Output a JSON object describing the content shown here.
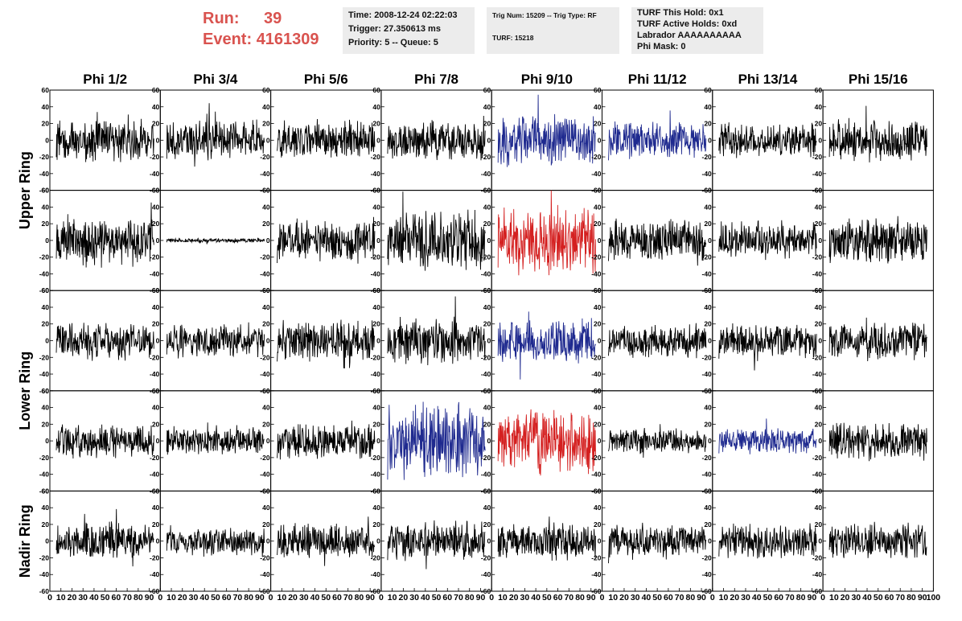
{
  "header": {
    "run_label": "Run:",
    "run_value": "39",
    "event_label": "Event:",
    "event_value": "4161309",
    "colors": {
      "run_text": "#d9534f"
    }
  },
  "info_boxes": {
    "time": {
      "line1": "Time: 2008-12-24 02:22:03",
      "line2": "Trigger: 27.350613 ms",
      "line3": "Priority: 5 -- Queue: 5"
    },
    "trig": {
      "line1": "Trig Num: 15209 -- Trig Type: RF",
      "line2": "TURF: 15218"
    },
    "turf": {
      "line1": "TURF This Hold: 0x1",
      "line2": "TURF Active Holds: 0xd",
      "line3": "Labrador AAAAAAAAAA",
      "line4": "Phi Mask: 0"
    }
  },
  "chart_data": {
    "type": "line",
    "columns": [
      "Phi 1/2",
      "Phi 3/4",
      "Phi 5/6",
      "Phi 7/8",
      "Phi 9/10",
      "Phi 11/12",
      "Phi 13/14",
      "Phi 15/16"
    ],
    "row_groups": [
      {
        "label": "Upper Ring",
        "rows": [
          0,
          1
        ]
      },
      {
        "label": "Lower Ring",
        "rows": [
          2,
          3
        ]
      },
      {
        "label": "Nadir Ring",
        "rows": [
          4
        ]
      }
    ],
    "ylim": [
      -60,
      60
    ],
    "y_ticks": [
      -60,
      -40,
      -20,
      0,
      20,
      40,
      60
    ],
    "xlim": [
      0,
      100
    ],
    "x_tick_labels": [
      "0",
      "10",
      "20",
      "30",
      "40",
      "50",
      "60",
      "70",
      "80",
      "90",
      "100"
    ],
    "colors": {
      "normal": "#000000",
      "highlight_blue": "#1f2a8f",
      "highlight_red": "#d42020"
    },
    "cells": [
      {
        "row": 0,
        "col": 0,
        "color": "normal",
        "amplitude": 20
      },
      {
        "row": 0,
        "col": 1,
        "color": "normal",
        "amplitude": 18
      },
      {
        "row": 0,
        "col": 2,
        "color": "normal",
        "amplitude": 19
      },
      {
        "row": 0,
        "col": 3,
        "color": "normal",
        "amplitude": 18
      },
      {
        "row": 0,
        "col": 4,
        "color": "highlight_blue",
        "amplitude": 24
      },
      {
        "row": 0,
        "col": 5,
        "color": "highlight_blue",
        "amplitude": 18
      },
      {
        "row": 0,
        "col": 6,
        "color": "normal",
        "amplitude": 16
      },
      {
        "row": 0,
        "col": 7,
        "color": "normal",
        "amplitude": 20
      },
      {
        "row": 1,
        "col": 0,
        "color": "normal",
        "amplitude": 24
      },
      {
        "row": 1,
        "col": 1,
        "color": "normal",
        "amplitude": 2
      },
      {
        "row": 1,
        "col": 2,
        "color": "normal",
        "amplitude": 20
      },
      {
        "row": 1,
        "col": 3,
        "color": "normal",
        "amplitude": 28
      },
      {
        "row": 1,
        "col": 4,
        "color": "highlight_red",
        "amplitude": 32
      },
      {
        "row": 1,
        "col": 5,
        "color": "normal",
        "amplitude": 20
      },
      {
        "row": 1,
        "col": 6,
        "color": "normal",
        "amplitude": 20
      },
      {
        "row": 1,
        "col": 7,
        "color": "normal",
        "amplitude": 22
      },
      {
        "row": 2,
        "col": 0,
        "color": "normal",
        "amplitude": 18
      },
      {
        "row": 2,
        "col": 1,
        "color": "normal",
        "amplitude": 16
      },
      {
        "row": 2,
        "col": 2,
        "color": "normal",
        "amplitude": 20
      },
      {
        "row": 2,
        "col": 3,
        "color": "normal",
        "amplitude": 22
      },
      {
        "row": 2,
        "col": 4,
        "color": "highlight_blue",
        "amplitude": 20
      },
      {
        "row": 2,
        "col": 5,
        "color": "normal",
        "amplitude": 16
      },
      {
        "row": 2,
        "col": 6,
        "color": "normal",
        "amplitude": 16
      },
      {
        "row": 2,
        "col": 7,
        "color": "normal",
        "amplitude": 18
      },
      {
        "row": 3,
        "col": 0,
        "color": "normal",
        "amplitude": 16
      },
      {
        "row": 3,
        "col": 1,
        "color": "normal",
        "amplitude": 14
      },
      {
        "row": 3,
        "col": 2,
        "color": "normal",
        "amplitude": 18
      },
      {
        "row": 3,
        "col": 3,
        "color": "highlight_blue",
        "amplitude": 34
      },
      {
        "row": 3,
        "col": 4,
        "color": "highlight_red",
        "amplitude": 30
      },
      {
        "row": 3,
        "col": 5,
        "color": "normal",
        "amplitude": 12
      },
      {
        "row": 3,
        "col": 6,
        "color": "highlight_blue",
        "amplitude": 12
      },
      {
        "row": 3,
        "col": 7,
        "color": "normal",
        "amplitude": 18
      },
      {
        "row": 4,
        "col": 0,
        "color": "normal",
        "amplitude": 18
      },
      {
        "row": 4,
        "col": 1,
        "color": "normal",
        "amplitude": 14
      },
      {
        "row": 4,
        "col": 2,
        "color": "normal",
        "amplitude": 16
      },
      {
        "row": 4,
        "col": 3,
        "color": "normal",
        "amplitude": 18
      },
      {
        "row": 4,
        "col": 4,
        "color": "normal",
        "amplitude": 18
      },
      {
        "row": 4,
        "col": 5,
        "color": "normal",
        "amplitude": 16
      },
      {
        "row": 4,
        "col": 6,
        "color": "normal",
        "amplitude": 16
      },
      {
        "row": 4,
        "col": 7,
        "color": "normal",
        "amplitude": 18
      }
    ]
  }
}
